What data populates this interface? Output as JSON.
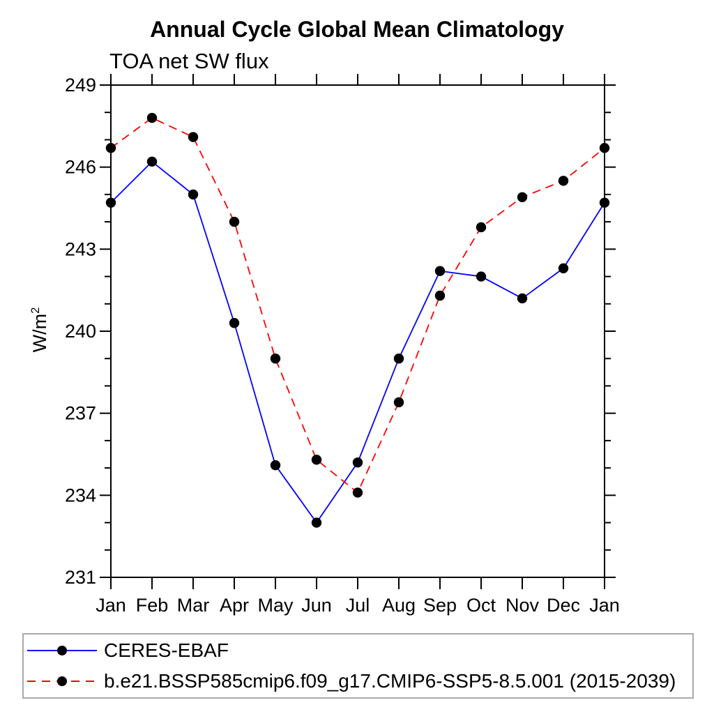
{
  "header": {
    "title": "Annual Cycle Global Mean Climatology",
    "subtitle": "TOA net SW flux"
  },
  "chart_data": {
    "type": "line",
    "title": "Annual Cycle Global Mean Climatology",
    "subtitle": "TOA net SW flux",
    "ylabel_base": "W/m",
    "ylabel_sup": "2",
    "x_categories": [
      "Jan",
      "Feb",
      "Mar",
      "Apr",
      "May",
      "Jun",
      "Jul",
      "Aug",
      "Sep",
      "Oct",
      "Nov",
      "Dec",
      "Jan"
    ],
    "ylim": [
      231,
      249
    ],
    "y_major_ticks": [
      249,
      246,
      243,
      240,
      237,
      234,
      231
    ],
    "y_minor_step": 1,
    "grid": false,
    "legend_position": "bottom-left-box",
    "axis_color": "#000000",
    "legend_border_color": "#a9a9a9",
    "marker": "filled-circle",
    "marker_color": "#000000",
    "series": [
      {
        "name": "CERES-EBAF",
        "line_color": "#0000ff",
        "line_style": "solid",
        "values": [
          244.7,
          246.2,
          245.0,
          240.3,
          235.1,
          233.0,
          235.2,
          239.0,
          242.2,
          242.0,
          241.2,
          242.3,
          244.7
        ]
      },
      {
        "name": "b.e21.BSSP585cmip6.f09_g17.CMIP6-SSP5-8.5.001 (2015-2039)",
        "line_color": "#ff0000",
        "line_style": "dashed",
        "values": [
          246.7,
          247.8,
          247.1,
          244.0,
          239.0,
          235.3,
          234.1,
          237.4,
          241.3,
          243.8,
          244.9,
          245.5,
          246.7
        ]
      }
    ]
  }
}
